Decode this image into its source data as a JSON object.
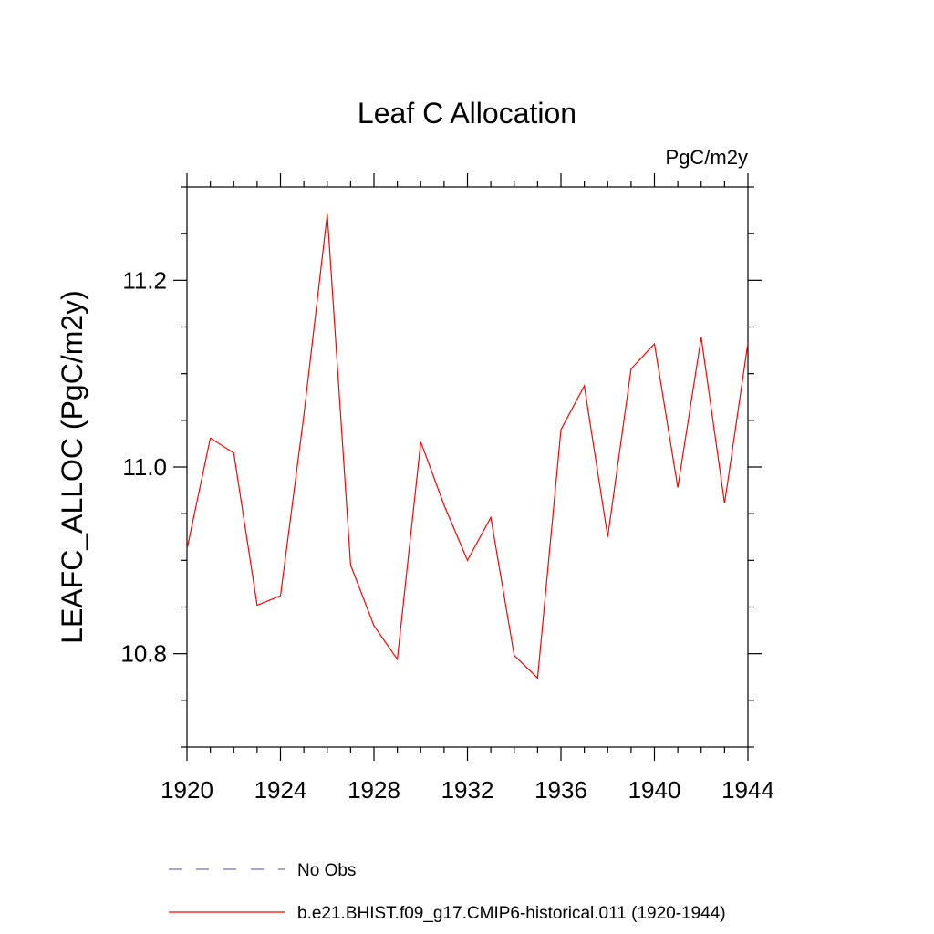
{
  "chart_data": {
    "type": "line",
    "title": "Leaf C Allocation",
    "units_label": "PgC/m2y",
    "ylabel": "LEAFC_ALLOC  (PgC/m2y)",
    "xlabel": "",
    "xlim": [
      1920,
      1944
    ],
    "ylim": [
      10.7,
      11.3
    ],
    "x_ticks": [
      1920,
      1924,
      1928,
      1932,
      1936,
      1940,
      1944
    ],
    "x_tick_labels": [
      "1920",
      "1924",
      "1928",
      "1932",
      "1936",
      "1940",
      "1944"
    ],
    "y_ticks": [
      10.8,
      11.0,
      11.2
    ],
    "y_tick_labels": [
      "10.8",
      "11.0",
      "11.2"
    ],
    "grid": false,
    "legend_placement": "bottom",
    "series": [
      {
        "name": "b.e21.BHIST.f09_g17.CMIP6-historical.011 (1920-1944)",
        "color": "#ff0000",
        "style": "solid",
        "x": [
          1920,
          1921,
          1922,
          1923,
          1924,
          1925,
          1926,
          1927,
          1928,
          1929,
          1930,
          1931,
          1932,
          1933,
          1934,
          1935,
          1936,
          1937,
          1938,
          1939,
          1940,
          1941,
          1942,
          1943,
          1944
        ],
        "values": [
          10.912,
          11.031,
          11.015,
          10.852,
          10.862,
          11.055,
          11.271,
          10.895,
          10.83,
          10.794,
          11.027,
          10.959,
          10.9,
          10.946,
          10.798,
          10.774,
          11.04,
          11.087,
          10.925,
          11.105,
          11.132,
          10.978,
          11.139,
          10.961,
          11.133
        ]
      }
    ],
    "legend": [
      {
        "label": "No Obs",
        "color": "#6f6fb0",
        "style": "dashed"
      },
      {
        "label": "b.e21.BHIST.f09_g17.CMIP6-historical.011 (1920-1944)",
        "color": "#ff0000",
        "style": "solid"
      }
    ]
  }
}
